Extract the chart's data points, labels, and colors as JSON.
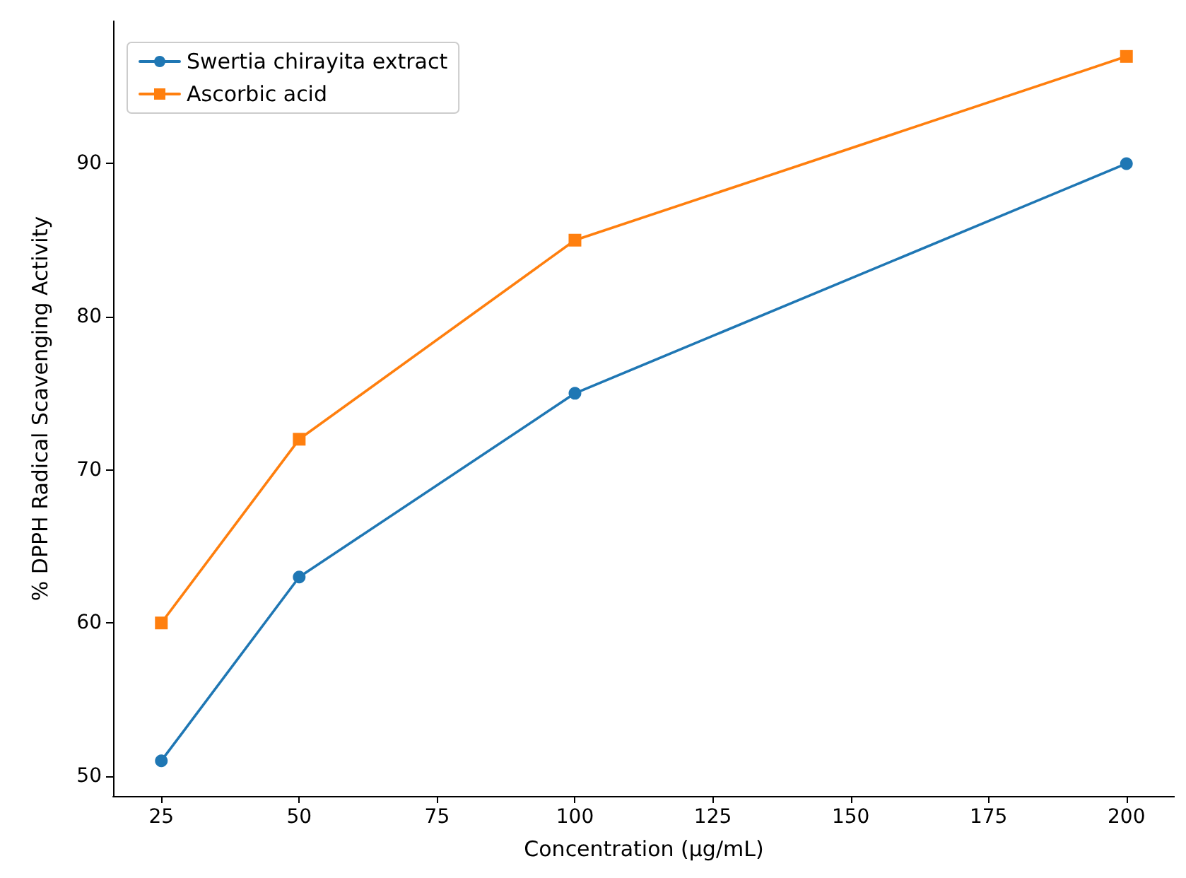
{
  "chart_data": {
    "type": "line",
    "xlabel": "Concentration (µg/mL)",
    "ylabel": "% DPPH Radical Scavenging Activity",
    "x": [
      25,
      50,
      100,
      200
    ],
    "series": [
      {
        "name": "Swertia chirayita extract",
        "color": "#1f77b4",
        "marker": "circle",
        "values": [
          51,
          63,
          75,
          90
        ]
      },
      {
        "name": "Ascorbic acid",
        "color": "#ff7f0e",
        "marker": "square",
        "values": [
          60,
          72,
          85,
          97
        ]
      }
    ],
    "xlim": [
      16.25,
      208.75
    ],
    "xticks": [
      25,
      50,
      75,
      100,
      125,
      150,
      175,
      200
    ],
    "ylim": [
      48.7,
      99.3
    ],
    "yticks": [
      50,
      60,
      70,
      80,
      90
    ],
    "grid": false,
    "legend": "top left",
    "line_style": "solid"
  }
}
